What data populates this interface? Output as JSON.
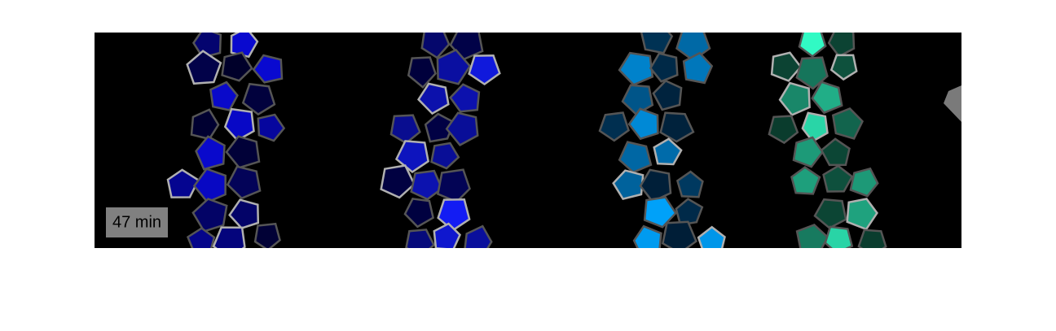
{
  "label": "47 min"
}
